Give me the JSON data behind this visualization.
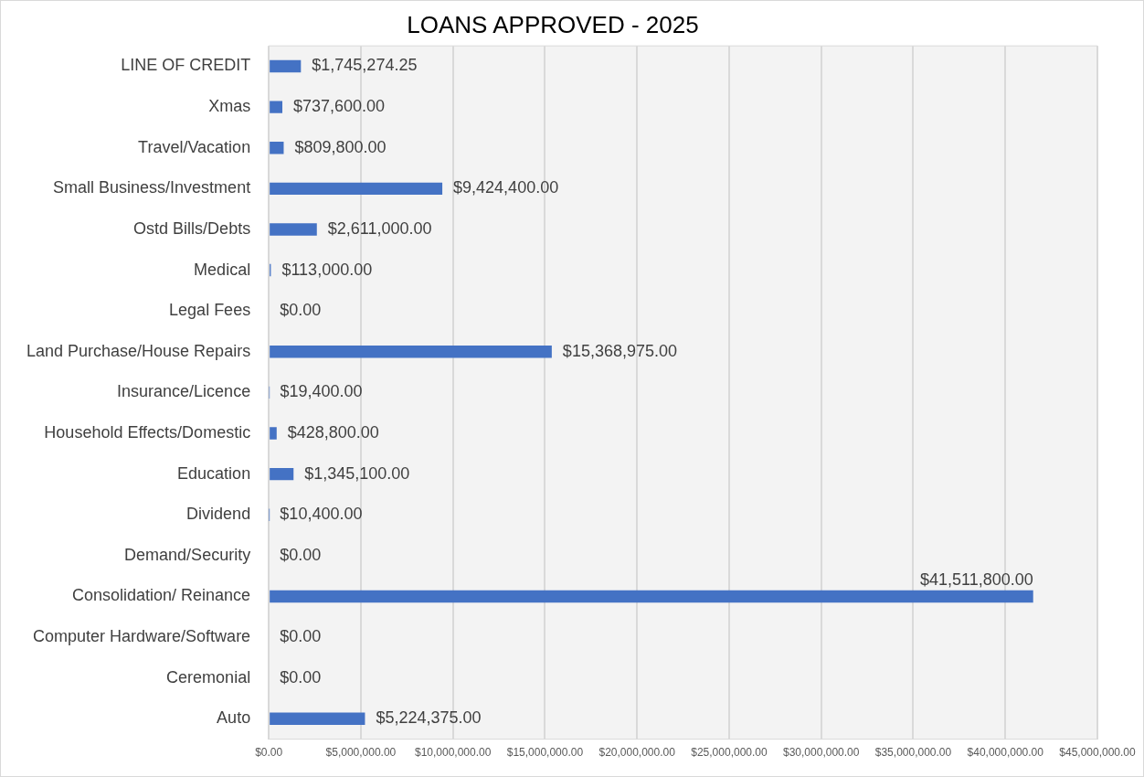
{
  "chart_data": {
    "type": "bar",
    "orientation": "horizontal",
    "title": "LOANS APPROVED - 2025",
    "categories": [
      "LINE OF CREDIT",
      "Xmas",
      "Travel/Vacation",
      "Small Business/Investment",
      "Ostd Bills/Debts",
      "Medical",
      "Legal Fees",
      "Land Purchase/House Repairs",
      "Insurance/Licence",
      "Household Effects/Domestic",
      "Education",
      "Dividend",
      "Demand/Security",
      "Consolidation/ Reinance",
      "Computer Hardware/Software",
      "Ceremonial",
      "Auto"
    ],
    "values": [
      1745274.25,
      737600,
      809800,
      9424400,
      2611000,
      113000,
      0,
      15368975,
      19400,
      428800,
      1345100,
      10400,
      0,
      41511800,
      0,
      0,
      5224375
    ],
    "value_labels": [
      "$1,745,274.25",
      "$737,600.00",
      "$809,800.00",
      "$9,424,400.00",
      "$2,611,000.00",
      "$113,000.00",
      "$0.00",
      "$15,368,975.00",
      "$19,400.00",
      "$428,800.00",
      "$1,345,100.00",
      "$10,400.00",
      "$0.00",
      "$41,511,800.00",
      "$0.00",
      "$0.00",
      "$5,224,375.00"
    ],
    "color": "#4472c4",
    "xlim": [
      0,
      45000000
    ],
    "xticks": [
      {
        "value": 0,
        "label": "$0.00"
      },
      {
        "value": 5000000,
        "label": "$5,000,000.00"
      },
      {
        "value": 10000000,
        "label": "$10,000,000.00"
      },
      {
        "value": 15000000,
        "label": "$15,000,000.00"
      },
      {
        "value": 20000000,
        "label": "$20,000,000.00"
      },
      {
        "value": 25000000,
        "label": "$25,000,000.00"
      },
      {
        "value": 30000000,
        "label": "$30,000,000.00"
      },
      {
        "value": 35000000,
        "label": "$35,000,000.00"
      },
      {
        "value": 40000000,
        "label": "$40,000,000.00"
      },
      {
        "value": 45000000,
        "label": "$45,000,000.00"
      }
    ],
    "grid": "x",
    "legend": false
  }
}
